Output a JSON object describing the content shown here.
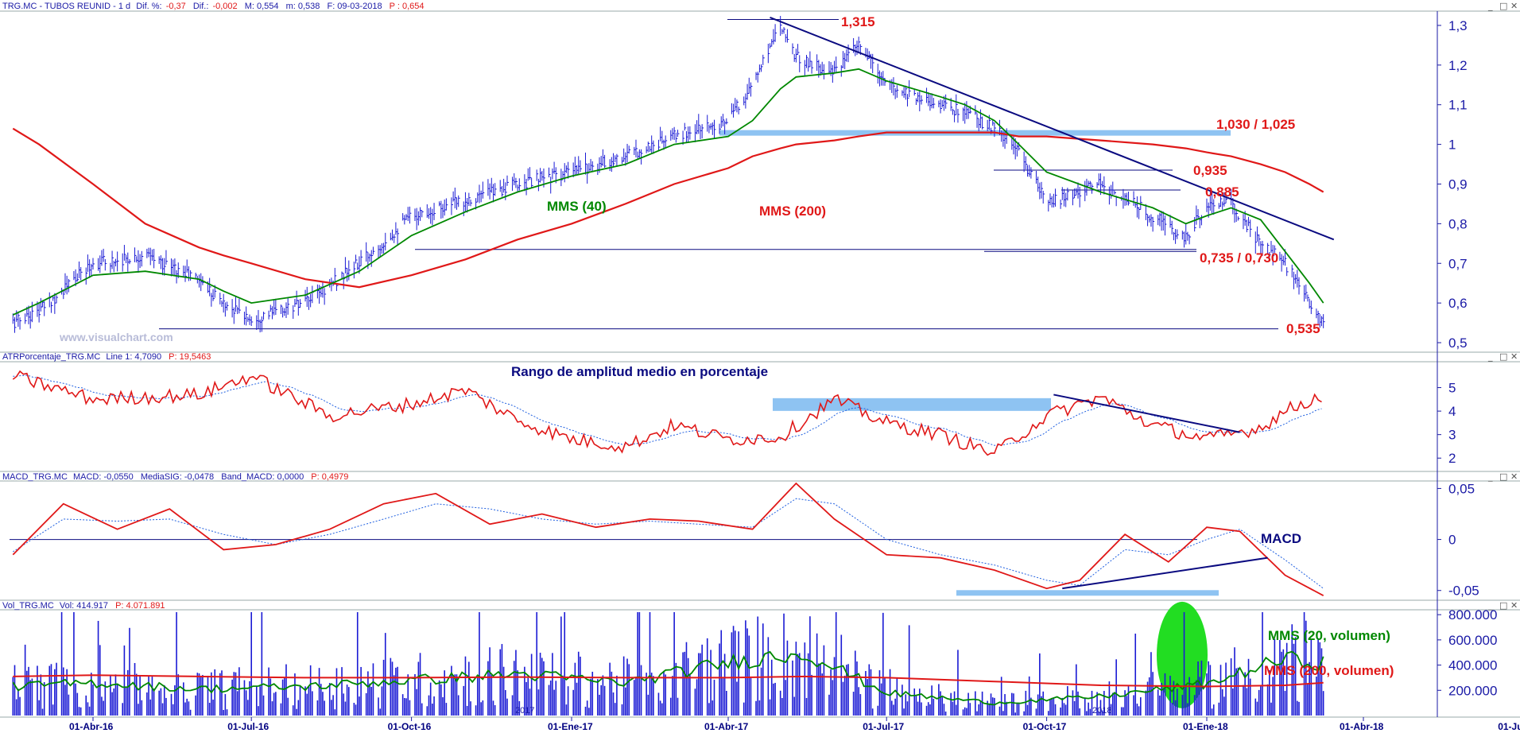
{
  "window_buttons": {
    "min": "_",
    "max": "□",
    "close": "✕"
  },
  "colors": {
    "price": "#1a1ad4",
    "mms40": "#008800",
    "mms200": "#e01818",
    "trend": "#0a0a80",
    "band": "#8ec3f2",
    "label_red": "#e01818",
    "label_green": "#008800",
    "label_blue": "#0a0a80",
    "axis": "#1a1aa6",
    "highlight": "#22dd22",
    "dotted": "#2060e0"
  },
  "panels": {
    "price": {
      "header": {
        "symbol": "TRG.MC - TUBOS REUNID -  1 d",
        "dif_pct_label": "Dif. %:",
        "dif_pct": "-0,37",
        "dif_label": "Dif.:",
        "dif": "-0,002",
        "m_high": "M: 0,554",
        "m_low": "m: 0,538",
        "date": "F: 09-03-2018",
        "p": "P : 0,654"
      },
      "yticks": [
        "1,3",
        "1,2",
        "1,1",
        "1",
        "0,9",
        "0,8",
        "0,7",
        "0,6",
        "0,5"
      ],
      "annotations": {
        "peak": "1,315",
        "resist": "1,030 / 1,025",
        "l935": "0,935",
        "l885": "0,885",
        "l735": "0,735 / 0,730",
        "l535": "0,535",
        "mms40": "MMS (40)",
        "mms200": "MMS (200)"
      },
      "watermark": "www.visualchart.com"
    },
    "atr": {
      "header": {
        "name": "ATRPorcentaje_TRG.MC",
        "line": "Line 1: 4,7090",
        "p": "P: 19,5463"
      },
      "title": "Rango de amplitud medio en porcentaje",
      "yticks": [
        "5",
        "4",
        "3",
        "2"
      ]
    },
    "macd": {
      "header": {
        "name": "MACD_TRG.MC",
        "macd": "MACD: -0,0550",
        "sig": "MediaSIG: -0,0478",
        "band": "Band_MACD: 0,0000",
        "p": "P: 0,4979"
      },
      "title": "MACD",
      "yticks": [
        "0,05",
        "0",
        "-0,05"
      ]
    },
    "vol": {
      "header": {
        "name": "Vol_TRG.MC",
        "vol": "Vol: 414.917",
        "p": "P: 4.071.891"
      },
      "yticks": [
        "800.000",
        "600.000",
        "400.000",
        "200.000"
      ],
      "annotations": {
        "mms20": "MMS (20, volumen)",
        "mms200": "MMS (200, volumen)"
      },
      "year_marks": [
        "2017",
        "2018"
      ]
    }
  },
  "x_axis": {
    "labels": [
      "01-Abr-16",
      "01-Jul-16",
      "01-Oct-16",
      "01-Ene-17",
      "01-Abr-17",
      "01-Jul-17",
      "01-Oct-17",
      "01-Ene-18",
      "01-Abr-18",
      "01-Jul-18"
    ]
  },
  "chart_data": [
    {
      "type": "line",
      "panel": "price",
      "note_series": "closing price (bars), MMS(40) and MMS(200)",
      "x": [
        "2016-02-15",
        "2016-03-01",
        "2016-04-01",
        "2016-05-01",
        "2016-06-01",
        "2016-06-15",
        "2016-07-01",
        "2016-08-01",
        "2016-09-01",
        "2016-10-01",
        "2016-11-01",
        "2016-12-01",
        "2017-01-01",
        "2017-02-01",
        "2017-03-01",
        "2017-04-01",
        "2017-04-15",
        "2017-05-01",
        "2017-05-10",
        "2017-06-01",
        "2017-06-15",
        "2017-07-01",
        "2017-08-01",
        "2017-08-15",
        "2017-09-01",
        "2017-09-15",
        "2017-10-01",
        "2017-11-01",
        "2017-12-01",
        "2017-12-20",
        "2018-01-01",
        "2018-01-15",
        "2018-02-01",
        "2018-02-15",
        "2018-03-01",
        "2018-03-09"
      ],
      "series": [
        {
          "name": "",
          "values": [
            0.55,
            0.58,
            0.7,
            0.72,
            0.66,
            0.6,
            0.56,
            0.6,
            0.7,
            0.82,
            0.86,
            0.9,
            0.93,
            0.97,
            1.02,
            1.06,
            1.15,
            1.31,
            1.22,
            1.18,
            1.25,
            1.15,
            1.1,
            1.08,
            1.04,
            0.98,
            0.85,
            0.9,
            0.82,
            0.76,
            0.85,
            0.85,
            0.75,
            0.7,
            0.6,
            0.54
          ]
        },
        {
          "name": "MMS (40)",
          "values": [
            0.57,
            0.6,
            0.67,
            0.68,
            0.66,
            0.63,
            0.6,
            0.62,
            0.68,
            0.77,
            0.83,
            0.88,
            0.92,
            0.95,
            1.0,
            1.02,
            1.06,
            1.14,
            1.17,
            1.18,
            1.19,
            1.16,
            1.12,
            1.1,
            1.06,
            1.0,
            0.93,
            0.88,
            0.84,
            0.8,
            0.82,
            0.84,
            0.81,
            0.73,
            0.65,
            0.6
          ]
        },
        {
          "name": "MMS (200)",
          "values": [
            1.04,
            1.0,
            0.9,
            0.8,
            0.74,
            0.72,
            0.7,
            0.66,
            0.64,
            0.67,
            0.71,
            0.76,
            0.8,
            0.85,
            0.9,
            0.94,
            0.97,
            0.99,
            1.0,
            1.01,
            1.02,
            1.03,
            1.03,
            1.03,
            1.03,
            1.02,
            1.02,
            1.01,
            1.0,
            0.99,
            0.98,
            0.97,
            0.95,
            0.93,
            0.9,
            0.88
          ]
        }
      ],
      "levels": [
        1.315,
        1.03,
        1.025,
        0.935,
        0.885,
        0.735,
        0.73,
        0.535
      ],
      "ylim": [
        0.48,
        1.33
      ]
    },
    {
      "type": "line",
      "panel": "atr",
      "x": [
        "2016-02-15",
        "2016-04-01",
        "2016-06-01",
        "2016-07-01",
        "2016-08-15",
        "2016-10-01",
        "2016-11-01",
        "2016-12-01",
        "2017-01-01",
        "2017-02-01",
        "2017-03-01",
        "2017-04-01",
        "2017-05-01",
        "2017-06-01",
        "2017-07-01",
        "2017-08-01",
        "2017-09-01",
        "2017-10-01",
        "2017-11-01",
        "2017-12-01",
        "2018-01-01",
        "2018-02-01",
        "2018-02-15",
        "2018-03-09"
      ],
      "series": [
        {
          "name": "Line 1",
          "values": [
            5.5,
            4.5,
            4.7,
            5.5,
            3.8,
            4.3,
            4.9,
            3.6,
            2.8,
            2.5,
            3.4,
            2.8,
            2.9,
            4.5,
            3.5,
            3.0,
            2.2,
            3.8,
            4.6,
            3.4,
            2.8,
            3.3,
            4.0,
            4.7
          ]
        }
      ],
      "ylim": [
        1.5,
        6.0
      ]
    },
    {
      "type": "line",
      "panel": "macd",
      "x": [
        "2016-02-15",
        "2016-03-15",
        "2016-04-15",
        "2016-05-15",
        "2016-06-15",
        "2016-07-15",
        "2016-08-15",
        "2016-09-15",
        "2016-10-15",
        "2016-11-15",
        "2016-12-15",
        "2017-01-15",
        "2017-02-15",
        "2017-03-15",
        "2017-04-15",
        "2017-05-10",
        "2017-06-01",
        "2017-07-01",
        "2017-08-01",
        "2017-09-01",
        "2017-10-01",
        "2017-10-20",
        "2017-11-15",
        "2017-12-10",
        "2018-01-01",
        "2018-01-20",
        "2018-02-15",
        "2018-03-09"
      ],
      "series": [
        {
          "name": "MACD",
          "values": [
            -0.015,
            0.035,
            0.01,
            0.03,
            -0.01,
            -0.005,
            0.01,
            0.035,
            0.045,
            0.015,
            0.025,
            0.012,
            0.02,
            0.018,
            0.01,
            0.055,
            0.02,
            -0.015,
            -0.018,
            -0.03,
            -0.048,
            -0.04,
            0.005,
            -0.022,
            0.012,
            0.008,
            -0.035,
            -0.055
          ]
        },
        {
          "name": "MediaSIG",
          "values": [
            -0.012,
            0.02,
            0.018,
            0.02,
            0.005,
            -0.005,
            0.005,
            0.02,
            0.035,
            0.03,
            0.02,
            0.015,
            0.018,
            0.015,
            0.012,
            0.04,
            0.035,
            0.0,
            -0.015,
            -0.025,
            -0.04,
            -0.045,
            -0.01,
            -0.015,
            0.0,
            0.01,
            -0.02,
            -0.048
          ]
        },
        {
          "name": "Band_MACD",
          "values": [
            0,
            0,
            0,
            0,
            0,
            0,
            0,
            0,
            0,
            0,
            0,
            0,
            0,
            0,
            0,
            0,
            0,
            0,
            0,
            0,
            0,
            0,
            0,
            0,
            0,
            0,
            0,
            0
          ]
        }
      ],
      "ylim": [
        -0.058,
        0.055
      ]
    },
    {
      "type": "bar",
      "panel": "vol",
      "x": [
        "2016-02-15",
        "2016-04-01",
        "2016-06-01",
        "2016-08-01",
        "2016-10-01",
        "2016-12-01",
        "2017-02-01",
        "2017-04-01",
        "2017-05-15",
        "2017-07-01",
        "2017-09-01",
        "2017-11-01",
        "2018-01-01",
        "2018-02-15",
        "2018-03-09"
      ],
      "series": [
        {
          "name": "MMS (20, volumen)",
          "values": [
            230000,
            260000,
            210000,
            230000,
            280000,
            330000,
            260000,
            420000,
            500000,
            180000,
            100000,
            150000,
            250000,
            450000,
            414917
          ]
        },
        {
          "name": "MMS (200, volumen)",
          "values": [
            310000,
            320000,
            310000,
            300000,
            300000,
            305000,
            300000,
            300000,
            310000,
            300000,
            270000,
            240000,
            230000,
            240000,
            260000
          ]
        }
      ],
      "ylim": [
        0,
        820000
      ]
    }
  ]
}
